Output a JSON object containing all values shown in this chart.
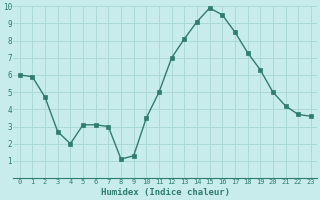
{
  "x": [
    0,
    1,
    2,
    3,
    4,
    5,
    6,
    7,
    8,
    9,
    10,
    11,
    12,
    13,
    14,
    15,
    16,
    17,
    18,
    19,
    20,
    21,
    22,
    23
  ],
  "y": [
    6.0,
    5.9,
    4.7,
    2.7,
    2.0,
    3.1,
    3.1,
    3.0,
    1.1,
    1.3,
    3.5,
    5.0,
    7.0,
    8.1,
    9.1,
    9.9,
    9.5,
    8.5,
    7.3,
    6.3,
    5.0,
    4.2,
    3.7,
    3.6
  ],
  "xlabel": "Humidex (Indice chaleur)",
  "ylim": [
    0,
    10
  ],
  "xlim": [
    -0.5,
    23.5
  ],
  "yticks": [
    1,
    2,
    3,
    4,
    5,
    6,
    7,
    8,
    9,
    10
  ],
  "xticks": [
    0,
    1,
    2,
    3,
    4,
    5,
    6,
    7,
    8,
    9,
    10,
    11,
    12,
    13,
    14,
    15,
    16,
    17,
    18,
    19,
    20,
    21,
    22,
    23
  ],
  "line_color": "#2e7d6e",
  "marker_color": "#2e7d6e",
  "bg_color": "#c8ecec",
  "grid_color": "#acd8d8",
  "tick_color": "#2e7d6e",
  "xlabel_color": "#2e7d6e",
  "bottom_bg": "#9bbfbf",
  "axis_line_color": "#2e7d6e"
}
